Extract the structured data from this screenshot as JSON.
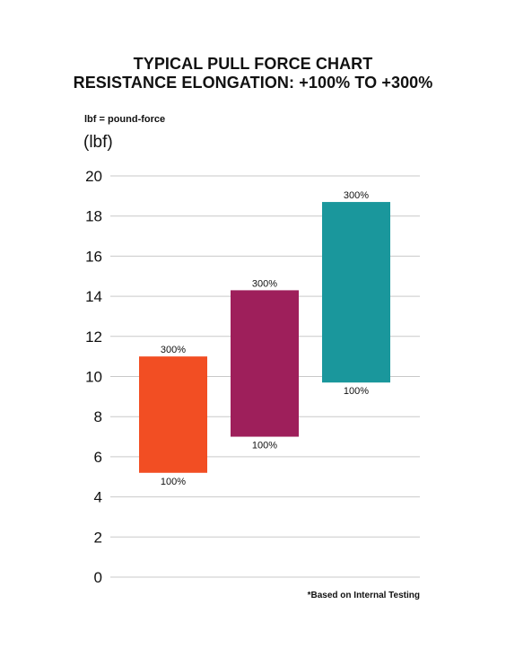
{
  "chart_data": {
    "type": "bar",
    "title": "TYPICAL PULL FORCE CHART",
    "subtitle": "RESISTANCE ELONGATION: +100% TO +300%",
    "note": "lbf = pound-force",
    "ylabel": "(lbf)",
    "footnote": "*Based on Internal Testing",
    "ylim": [
      0,
      20
    ],
    "yticks": [
      "0",
      "2",
      "4",
      "6",
      "8",
      "10",
      "12",
      "14",
      "16",
      "18",
      "20"
    ],
    "grid": true,
    "series": [
      {
        "low": 5.2,
        "high": 11.0,
        "low_label": "100%",
        "high_label": "300%",
        "color": "#f24e23"
      },
      {
        "low": 7.0,
        "high": 14.3,
        "low_label": "100%",
        "high_label": "300%",
        "color": "#9e1f5b"
      },
      {
        "low": 9.7,
        "high": 18.7,
        "low_label": "100%",
        "high_label": "300%",
        "color": "#1a979c"
      }
    ]
  }
}
